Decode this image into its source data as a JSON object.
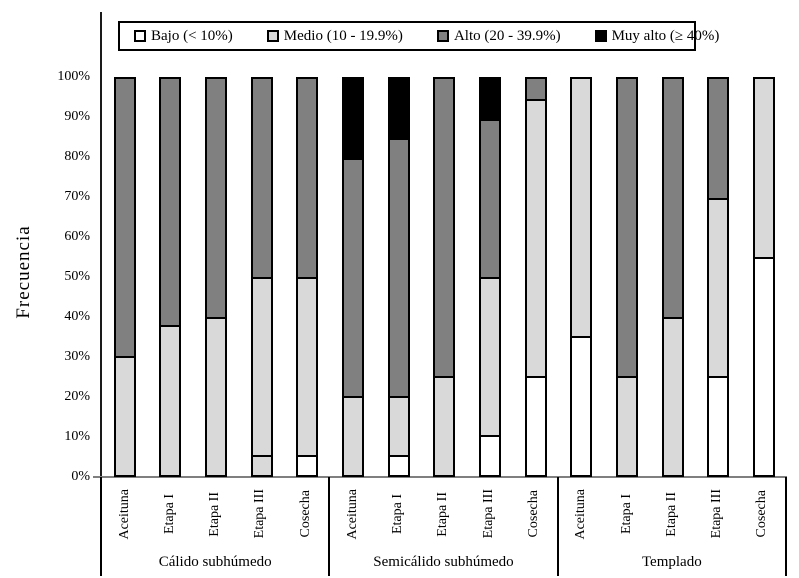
{
  "chart_data": {
    "type": "bar",
    "variant": "stacked-100-percent",
    "title": "",
    "xlabel": "",
    "ylabel": "Frecuencia",
    "ylim": [
      0,
      100
    ],
    "ytick_step": 10,
    "ytick_suffix": "%",
    "yticks": [
      0,
      10,
      20,
      30,
      40,
      50,
      60,
      70,
      80,
      90,
      100
    ],
    "grid": false,
    "legend_position": "top-inside-bordered-box",
    "legend": [
      {
        "category": "bajo",
        "label": "Bajo (< 10%)",
        "color": "#ffffff"
      },
      {
        "category": "medio",
        "label": "Medio (10 - 19.9%)",
        "color": "#d9d9d9"
      },
      {
        "category": "alto",
        "label": "Alto (20 - 39.9%)",
        "color": "#808080"
      },
      {
        "category": "muy_alto",
        "label": "Muy alto (≥ 40%)",
        "color": "#000000"
      }
    ],
    "colors": {
      "bajo": "#ffffff",
      "medio": "#d9d9d9",
      "alto": "#808080",
      "muy_alto": "#000000",
      "bar_border": "#000000",
      "baseline": "#7f7f7f"
    },
    "groups": [
      {
        "label": "Cálido subhúmedo",
        "bars": [
          {
            "label": "Aceituna",
            "segments": [
              {
                "category": "medio",
                "value": 30
              },
              {
                "category": "alto",
                "value": 70
              }
            ]
          },
          {
            "label": "Etapa I",
            "segments": [
              {
                "category": "medio",
                "value": 38
              },
              {
                "category": "alto",
                "value": 62
              }
            ]
          },
          {
            "label": "Etapa II",
            "segments": [
              {
                "category": "medio",
                "value": 40
              },
              {
                "category": "alto",
                "value": 60
              }
            ]
          },
          {
            "label": "Etapa III",
            "segments": [
              {
                "category": "bajo",
                "value": 5,
                "fill": "#d9d9d9"
              },
              {
                "category": "medio",
                "value": 45
              },
              {
                "category": "alto",
                "value": 50
              }
            ]
          },
          {
            "label": "Cosecha",
            "segments": [
              {
                "category": "bajo",
                "value": 5
              },
              {
                "category": "medio",
                "value": 45
              },
              {
                "category": "alto",
                "value": 50
              }
            ]
          }
        ]
      },
      {
        "label": "Semicálido subhúmedo",
        "bars": [
          {
            "label": "Aceituna",
            "segments": [
              {
                "category": "medio",
                "value": 20
              },
              {
                "category": "alto",
                "value": 60
              },
              {
                "category": "muy_alto",
                "value": 20
              }
            ]
          },
          {
            "label": "Etapa I",
            "segments": [
              {
                "category": "bajo",
                "value": 5
              },
              {
                "category": "medio",
                "value": 15
              },
              {
                "category": "alto",
                "value": 65
              },
              {
                "category": "muy_alto",
                "value": 15
              }
            ]
          },
          {
            "label": "Etapa II",
            "segments": [
              {
                "category": "medio",
                "value": 25
              },
              {
                "category": "alto",
                "value": 75
              }
            ]
          },
          {
            "label": "Etapa III",
            "segments": [
              {
                "category": "bajo",
                "value": 10
              },
              {
                "category": "medio",
                "value": 40
              },
              {
                "category": "alto",
                "value": 40
              },
              {
                "category": "muy_alto",
                "value": 10
              }
            ]
          },
          {
            "label": "Cosecha",
            "segments": [
              {
                "category": "bajo",
                "value": 25
              },
              {
                "category": "medio",
                "value": 70
              },
              {
                "category": "alto",
                "value": 5
              }
            ]
          }
        ]
      },
      {
        "label": "Templado",
        "bars": [
          {
            "label": "Aceituna",
            "segments": [
              {
                "category": "bajo",
                "value": 35
              },
              {
                "category": "medio",
                "value": 65
              }
            ]
          },
          {
            "label": "Etapa I",
            "segments": [
              {
                "category": "medio",
                "value": 25
              },
              {
                "category": "alto",
                "value": 75
              }
            ]
          },
          {
            "label": "Etapa II",
            "segments": [
              {
                "category": "medio",
                "value": 40
              },
              {
                "category": "alto",
                "value": 60
              }
            ]
          },
          {
            "label": "Etapa III",
            "segments": [
              {
                "category": "bajo",
                "value": 25
              },
              {
                "category": "medio",
                "value": 45
              },
              {
                "category": "alto",
                "value": 30
              }
            ]
          },
          {
            "label": "Cosecha",
            "segments": [
              {
                "category": "bajo",
                "value": 55
              },
              {
                "category": "medio",
                "value": 45
              }
            ]
          }
        ]
      }
    ]
  }
}
